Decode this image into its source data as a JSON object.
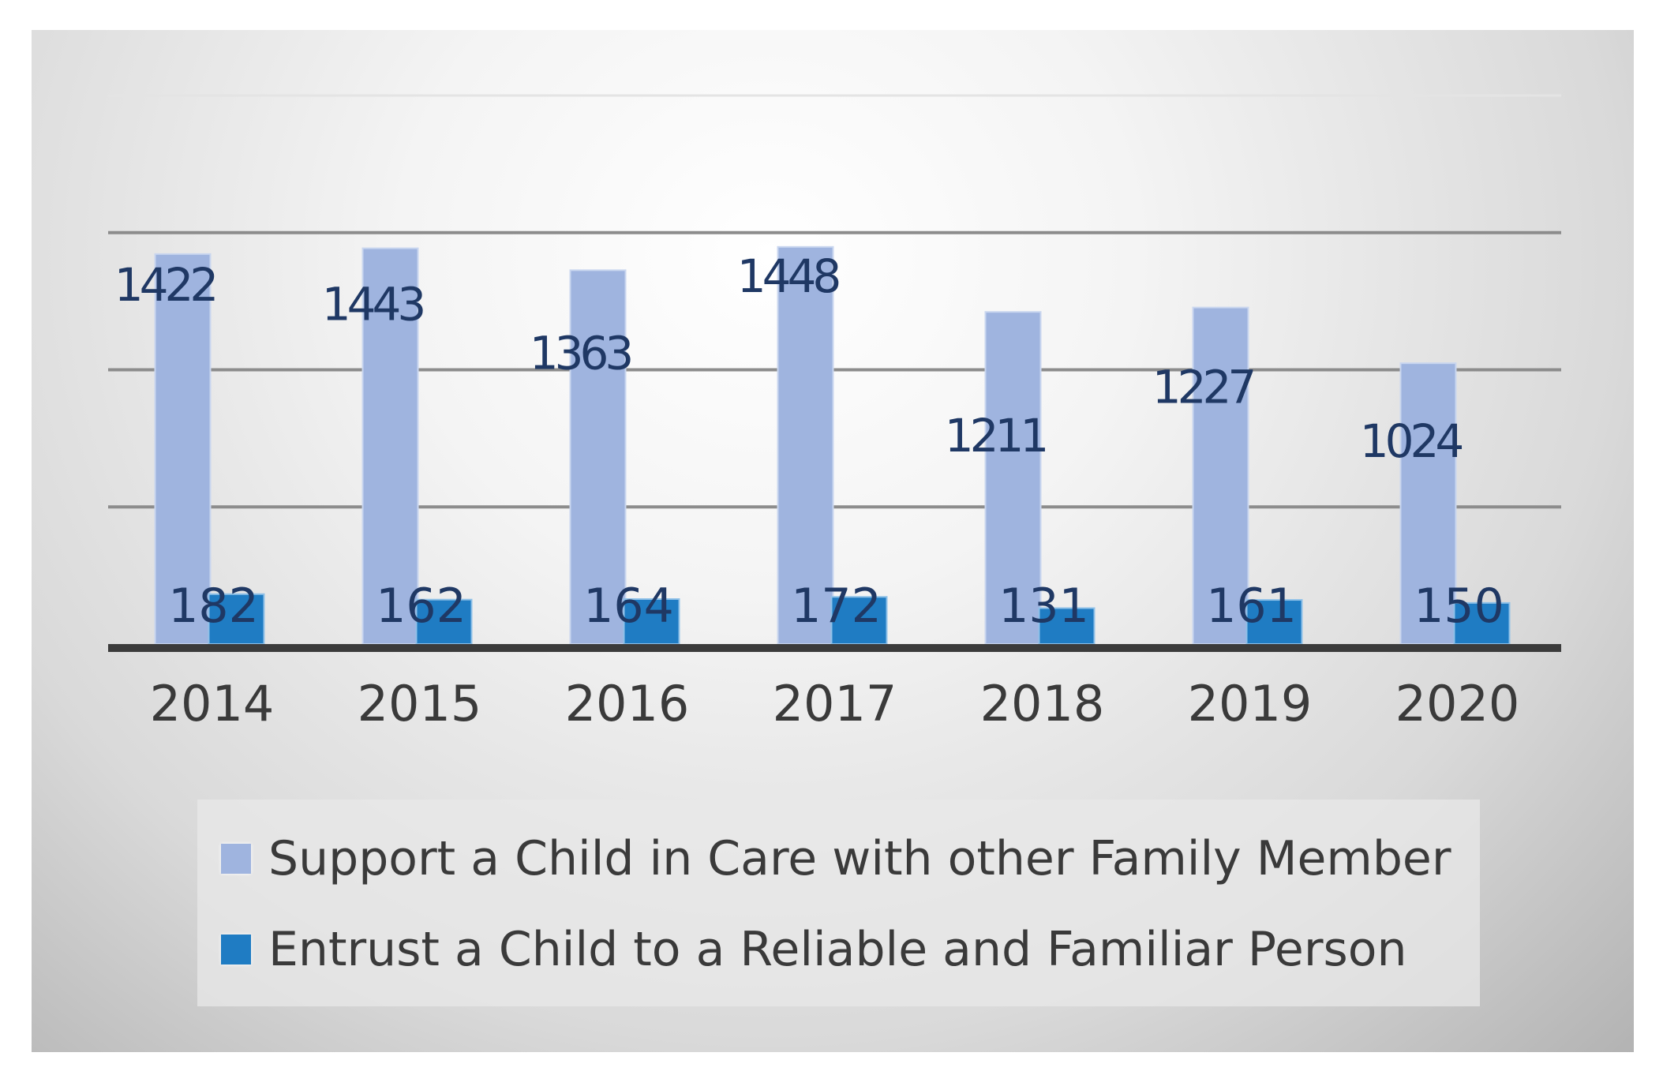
{
  "chart_data": {
    "type": "bar",
    "categories": [
      "2014",
      "2015",
      "2016",
      "2017",
      "2018",
      "2019",
      "2020"
    ],
    "series": [
      {
        "name": "Support a Child in Care with other Family Member",
        "color": "#9fb4df",
        "values": [
          1422,
          1443,
          1363,
          1448,
          1211,
          1227,
          1024
        ]
      },
      {
        "name": "Entrust a Child to a Reliable and Familiar Person",
        "color": "#1f7cc3",
        "values": [
          182,
          162,
          164,
          172,
          131,
          161,
          150
        ]
      }
    ],
    "title": "",
    "xlabel": "",
    "ylabel": "",
    "ylim": [
      0,
      2000
    ],
    "grid": true,
    "legend": "bottom"
  }
}
